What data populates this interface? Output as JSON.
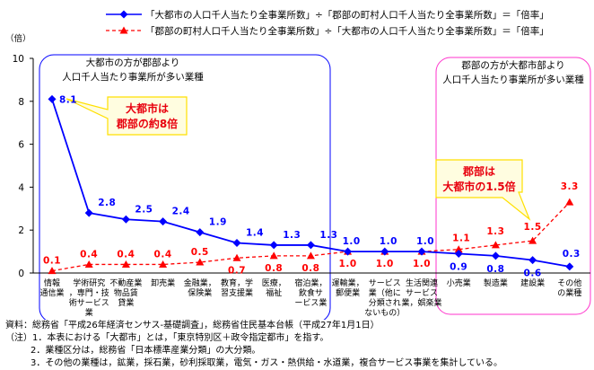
{
  "legend": {
    "blue": "「大都市の人口千人当たり全事業所数」÷「郡部の町村人口千人当たり全事業所数」＝「倍率」",
    "red": "「郡部の町村人口千人当たり全事業所数」÷「大都市の人口千人当たり全事業所数」＝「倍率」"
  },
  "left_box": {
    "line1": "大都市の方が郡部より",
    "line2": "人口千人当たり事業所が多い業種"
  },
  "right_box": {
    "line1": "郡部の方が大都市部より",
    "line2": "人口千人当たり事業所が多い業種"
  },
  "callout_blue": {
    "line1": "大都市は",
    "line2": "郡部の約8倍"
  },
  "callout_red": {
    "line1": "郡部は",
    "line2": "大都市の1.5倍"
  },
  "chart_data": {
    "type": "line",
    "ylabel": "（倍）",
    "ylim": [
      0,
      10
    ],
    "yticks": [
      "0",
      "2",
      "4",
      "6",
      "8",
      "10"
    ],
    "categories": [
      [
        "情報",
        "通信業"
      ],
      [
        "学術研究",
        "，専門・技",
        "術サービス",
        "業"
      ],
      [
        "不動産業",
        "物品賃",
        "貸業"
      ],
      [
        "卸売業"
      ],
      [
        "金融業，",
        "保険業"
      ],
      [
        "教育，学",
        "習支援業"
      ],
      [
        "医療，",
        "福祉"
      ],
      [
        "宿泊業，",
        "飲食サ",
        "ービス業"
      ],
      [
        "運輸業，",
        "郵便業"
      ],
      [
        "サービス",
        "業（他に",
        "分類され",
        "ないもの）"
      ],
      [
        "生活関連",
        "サービス",
        "業，娯楽業"
      ],
      [
        "小売業"
      ],
      [
        "製造業"
      ],
      [
        "建設業"
      ],
      [
        "その他",
        "の業種"
      ]
    ],
    "series": [
      {
        "color": "#0000ff",
        "values": [
          8.1,
          2.8,
          2.5,
          2.4,
          1.9,
          1.4,
          1.3,
          1.3,
          1.0,
          1.0,
          1.0,
          0.9,
          0.8,
          0.6,
          0.3
        ],
        "labels": [
          "8.1",
          "2.8",
          "2.5",
          "2.4",
          "1.9",
          "1.4",
          "1.3",
          "1.3",
          "1.0",
          "1.0",
          "1.0",
          "0.9",
          "0.8",
          "0.6",
          "0.3"
        ]
      },
      {
        "color": "#ff0000",
        "values": [
          0.1,
          0.4,
          0.4,
          0.4,
          0.5,
          0.7,
          0.8,
          0.8,
          1.0,
          1.0,
          1.0,
          1.1,
          1.3,
          1.5,
          3.3
        ],
        "labels": [
          "0.1",
          "0.4",
          "0.4",
          "0.4",
          "0.5",
          "0.7",
          "0.8",
          "0.8",
          "1.0",
          "1.0",
          "1.0",
          "1.1",
          "1.3",
          "1.5",
          "3.3"
        ]
      }
    ]
  },
  "notes": {
    "source": "資料：総務省「平成26年経済センサス-基礎調査」，総務省住民基本台帳（平成27年1月1日）",
    "note1": "（注）1．本表における「大都市」とは，「東京特別区＋政令指定都市」を指す。",
    "note2": "2．業種区分は，総務省「日本標準産業分類」の大分類。",
    "note3": "3．その他の業種は，鉱業，採石業，砂利採取業，電気・ガス・熱供給・水道業，複合サービス事業を集計している。"
  }
}
